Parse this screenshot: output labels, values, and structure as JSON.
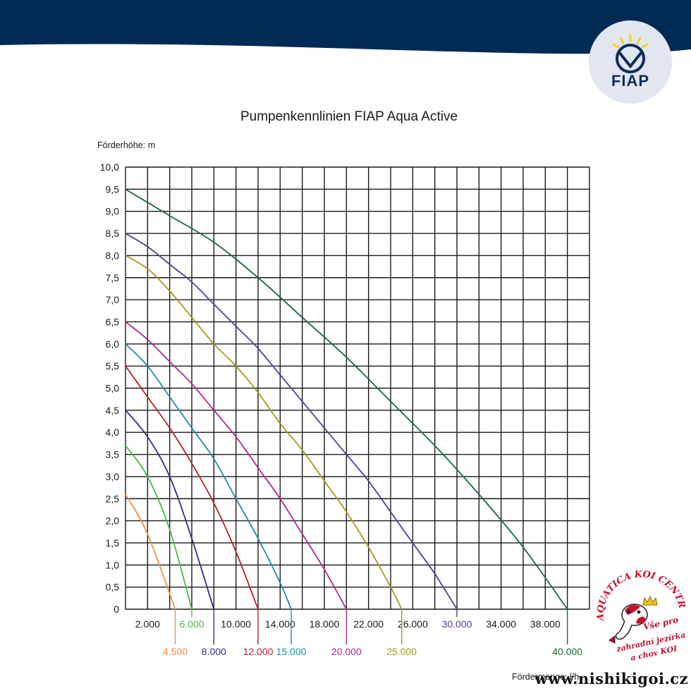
{
  "header": {
    "banner_color": "#012a55",
    "logo_text": "FIAP",
    "logo_color": "#0f2d5c",
    "logo_accent": "#f5d020",
    "logo_bg": "#e2e6f0"
  },
  "chart_data": {
    "type": "line",
    "title": "Pumpenkennlinien FIAP Aqua Active",
    "ylabel": "Förderhöhe: m",
    "xlabel": "Fördermenge: l/h",
    "xlim": [
      0,
      42000
    ],
    "ylim": [
      0,
      10
    ],
    "grid": true,
    "y_ticks": [
      "10,0",
      "9,5",
      "9,0",
      "8,5",
      "8,0",
      "7,5",
      "7,0",
      "6,5",
      "6,0",
      "5,5",
      "5,0",
      "4,5",
      "4,0",
      "3,5",
      "3,0",
      "2,5",
      "2,0",
      "1,5",
      "1,0",
      "0,5",
      "0"
    ],
    "y_tick_values": [
      10,
      9.5,
      9,
      8.5,
      8,
      7.5,
      7,
      6.5,
      6,
      5.5,
      5,
      4.5,
      4,
      3.5,
      3,
      2.5,
      2,
      1.5,
      1,
      0.5,
      0
    ],
    "x_ticks": [
      "2.000",
      "10.000",
      "14.000",
      "18.000",
      "22.000",
      "26.000",
      "34.000",
      "38.000"
    ],
    "x_tick_values": [
      2000,
      10000,
      14000,
      18000,
      22000,
      26000,
      34000,
      38000
    ],
    "series": [
      {
        "name": "4.500",
        "color": "#f0904a",
        "label_row": "lower",
        "x": [
          0,
          2000,
          4500
        ],
        "y": [
          2.6,
          1.7,
          0
        ]
      },
      {
        "name": "6.000",
        "color": "#4cb848",
        "label_row": "upper",
        "x": [
          0,
          2000,
          4000,
          6000
        ],
        "y": [
          3.7,
          3.0,
          1.8,
          0
        ]
      },
      {
        "name": "8.000",
        "color": "#2a3183",
        "label_row": "lower",
        "x": [
          0,
          2000,
          4000,
          6000,
          8000
        ],
        "y": [
          4.5,
          3.9,
          3.0,
          1.6,
          0
        ]
      },
      {
        "name": "12.000",
        "color": "#b5202e",
        "label_row": "lower",
        "x": [
          0,
          2000,
          4000,
          6000,
          8000,
          10000,
          12000
        ],
        "y": [
          5.5,
          4.8,
          4.1,
          3.3,
          2.4,
          1.3,
          0
        ]
      },
      {
        "name": "15.000",
        "color": "#1f8ea5",
        "label_row": "lower",
        "x": [
          0,
          2000,
          4000,
          6000,
          8000,
          10000,
          12000,
          14000,
          15000
        ],
        "y": [
          6.0,
          5.5,
          4.8,
          4.1,
          3.4,
          2.5,
          1.6,
          0.6,
          0
        ]
      },
      {
        "name": "20.000",
        "color": "#b5268c",
        "label_row": "lower",
        "x": [
          0,
          2000,
          4000,
          6000,
          8000,
          10000,
          12000,
          14000,
          16000,
          18000,
          20000
        ],
        "y": [
          6.5,
          6.1,
          5.6,
          5.1,
          4.5,
          3.9,
          3.2,
          2.5,
          1.7,
          0.9,
          0
        ]
      },
      {
        "name": "25.000",
        "color": "#a39b1a",
        "label_row": "lower",
        "x": [
          0,
          2000,
          4000,
          6000,
          8000,
          10000,
          12000,
          14000,
          16000,
          18000,
          20000,
          22000,
          24000,
          25000
        ],
        "y": [
          8.0,
          7.7,
          7.2,
          6.6,
          6.0,
          5.5,
          4.9,
          4.2,
          3.6,
          2.9,
          2.2,
          1.4,
          0.5,
          0
        ]
      },
      {
        "name": "30.000",
        "color": "#5a3a96",
        "label_row": "upper",
        "x": [
          0,
          2000,
          4000,
          6000,
          8000,
          10000,
          12000,
          14000,
          16000,
          18000,
          20000,
          22000,
          24000,
          26000,
          28000,
          30000
        ],
        "y": [
          8.5,
          8.2,
          7.8,
          7.4,
          6.9,
          6.4,
          5.9,
          5.3,
          4.7,
          4.1,
          3.5,
          2.9,
          2.2,
          1.5,
          0.8,
          0
        ]
      },
      {
        "name": "40.000",
        "color": "#176b38",
        "label_row": "lower",
        "x": [
          0,
          4000,
          8000,
          12000,
          16000,
          20000,
          24000,
          28000,
          32000,
          36000,
          40000
        ],
        "y": [
          9.5,
          8.9,
          8.3,
          7.5,
          6.6,
          5.7,
          4.7,
          3.7,
          2.6,
          1.4,
          0
        ]
      }
    ]
  },
  "footer": {
    "koi_ring_text": "AQUATICA KOI CENTRUM",
    "koi_line1": "Vše pro",
    "koi_line2": "zahradní jezírka",
    "koi_line3": "a chov KOI",
    "koi_color": "#c8102e",
    "website": "www.nishikigoi.cz"
  }
}
